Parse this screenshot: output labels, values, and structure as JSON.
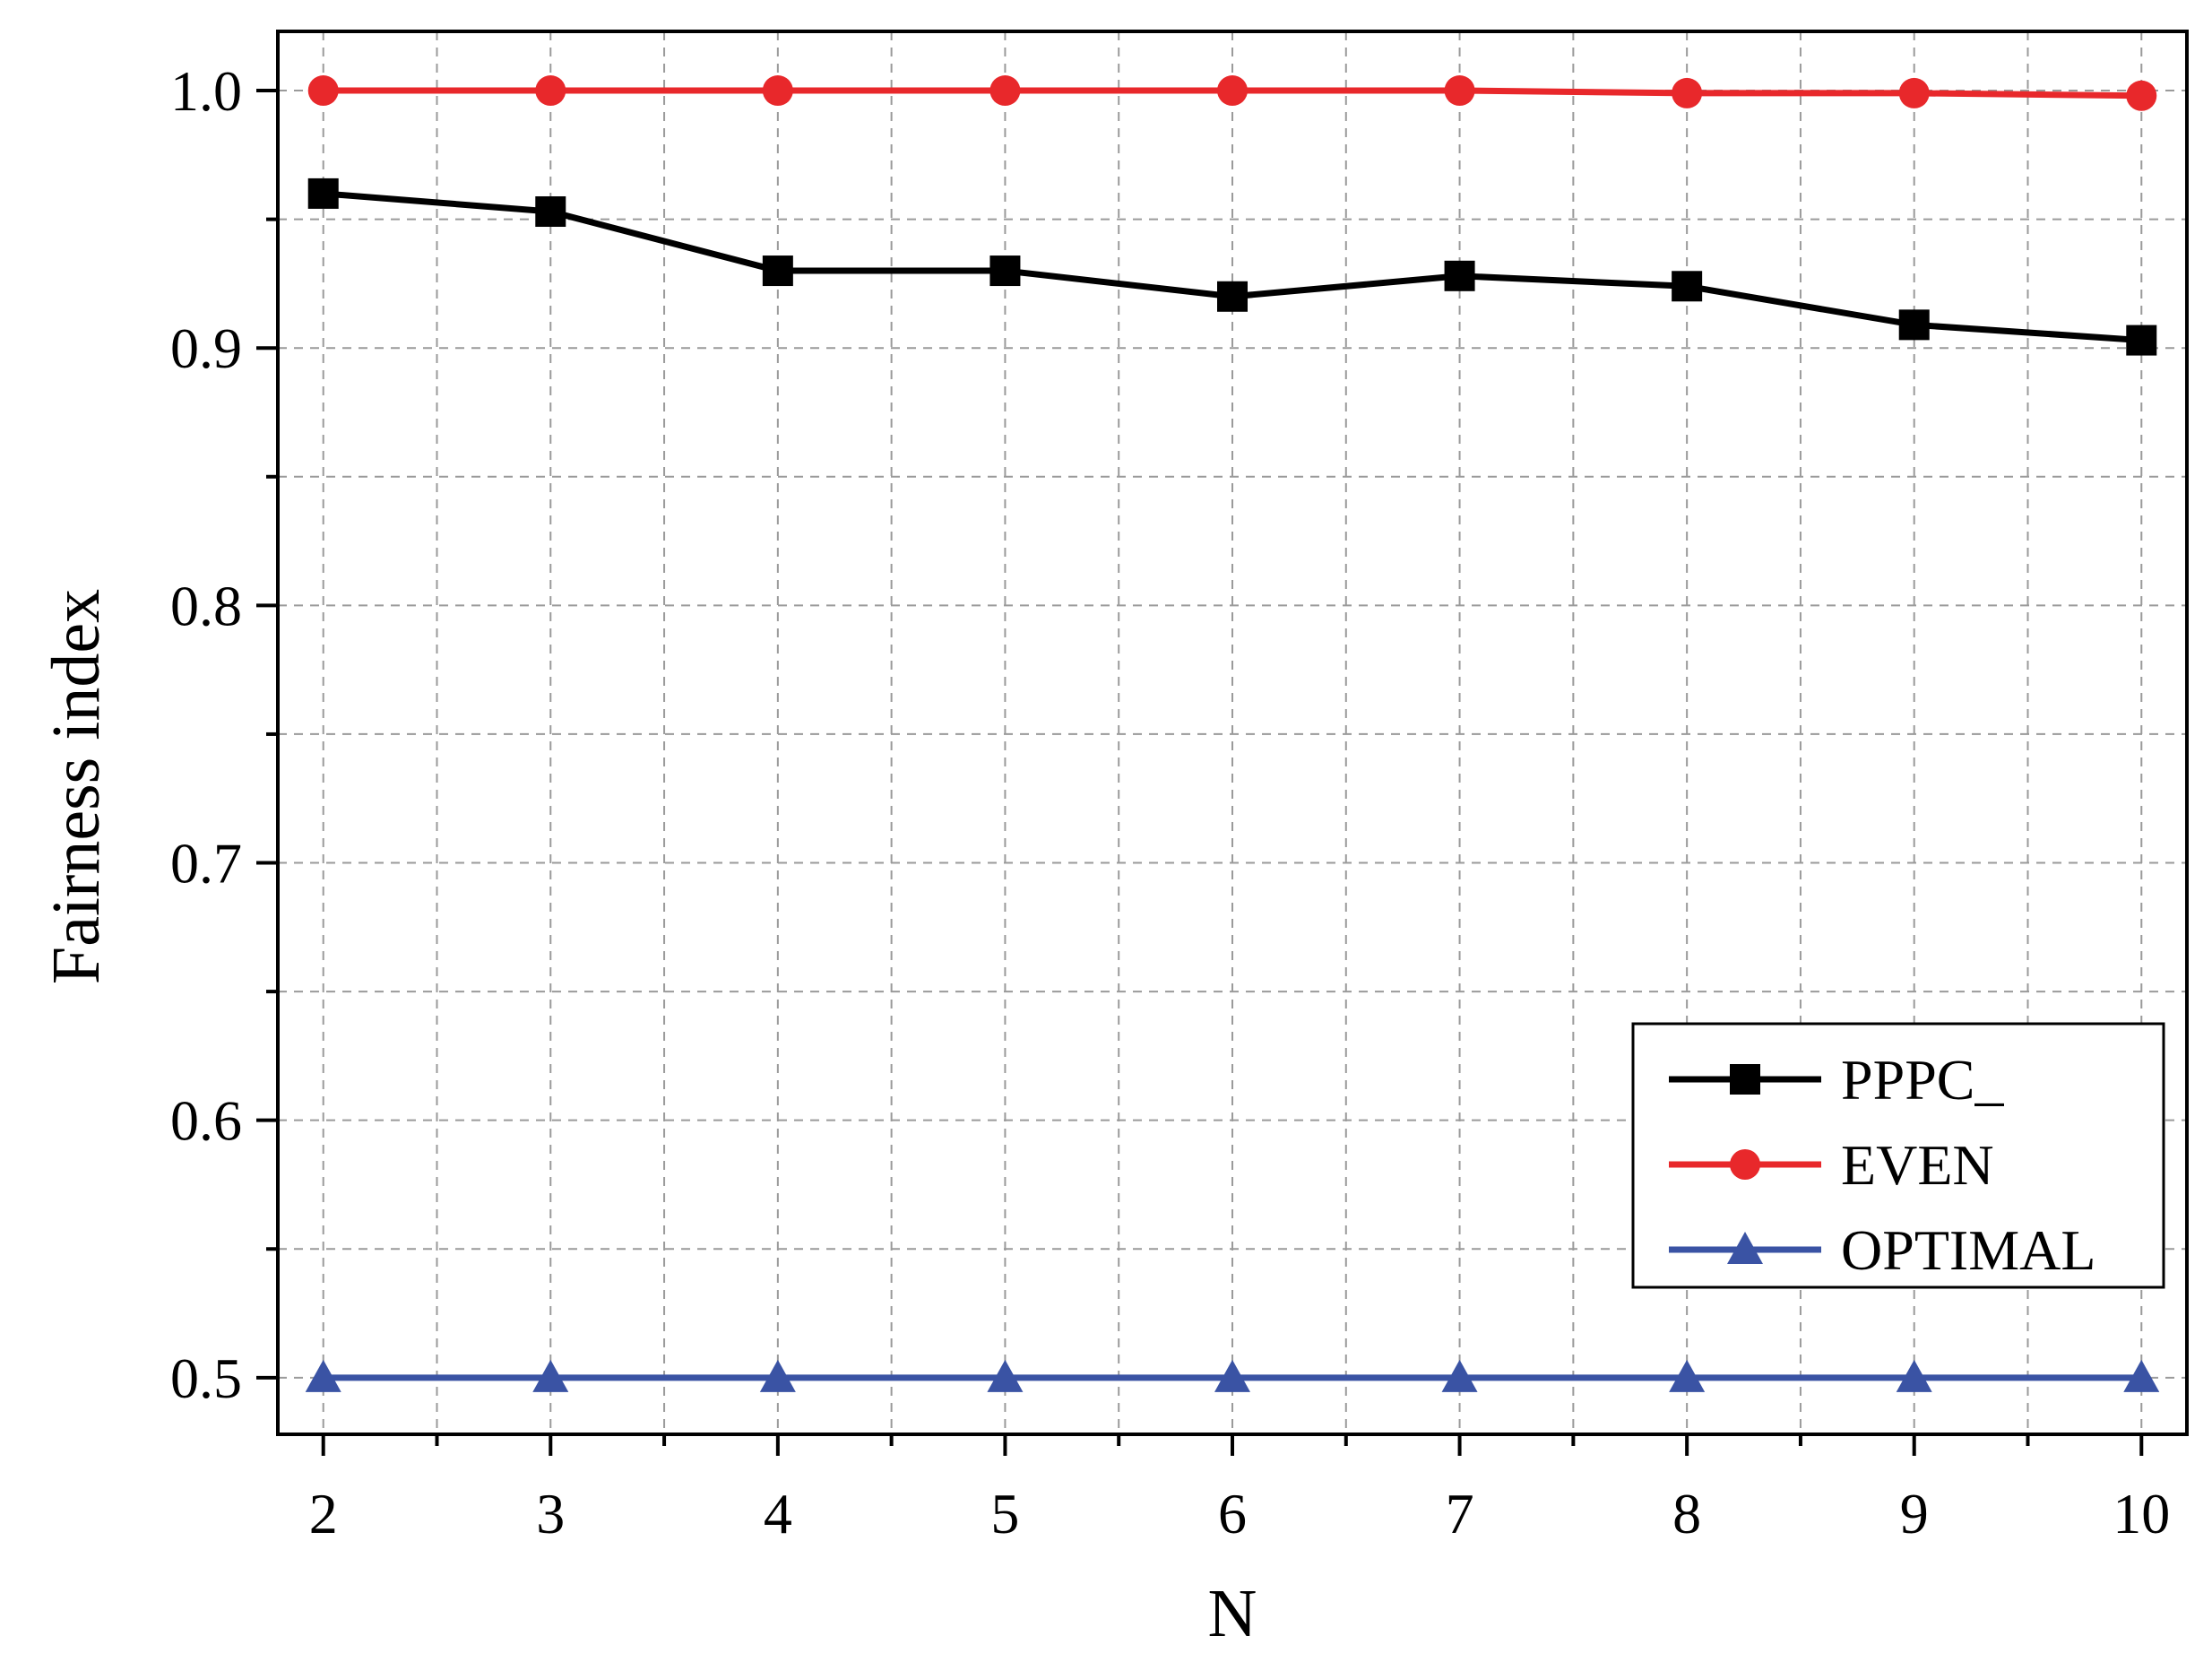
{
  "chart_data": {
    "type": "line",
    "title": "",
    "xlabel": "N",
    "ylabel": "Fairness index",
    "x": [
      2,
      3,
      4,
      5,
      6,
      7,
      8,
      9,
      10
    ],
    "xlim": [
      1.8,
      10.2
    ],
    "ylim": [
      0.478,
      1.023
    ],
    "xticks": [
      "2",
      "3",
      "4",
      "5",
      "6",
      "7",
      "8",
      "9",
      "10"
    ],
    "yticks": [
      "0.5",
      "0.6",
      "0.7",
      "0.8",
      "0.9",
      "1.0"
    ],
    "ytick_values": [
      0.5,
      0.6,
      0.7,
      0.8,
      0.9,
      1.0
    ],
    "grid": true,
    "legend_position": "bottom-right",
    "series": [
      {
        "name": "PPPC_",
        "color": "#000000",
        "marker": "square",
        "values": [
          0.96,
          0.953,
          0.93,
          0.93,
          0.92,
          0.928,
          0.924,
          0.909,
          0.903
        ]
      },
      {
        "name": "EVEN",
        "color": "#e8282b",
        "marker": "circle",
        "values": [
          1.0,
          1.0,
          1.0,
          1.0,
          1.0,
          1.0,
          0.999,
          0.999,
          0.998
        ]
      },
      {
        "name": "OPTIMAL",
        "color": "#3a53a4",
        "marker": "triangle",
        "values": [
          0.5,
          0.5,
          0.5,
          0.5,
          0.5,
          0.5,
          0.5,
          0.5,
          0.5
        ]
      }
    ]
  }
}
